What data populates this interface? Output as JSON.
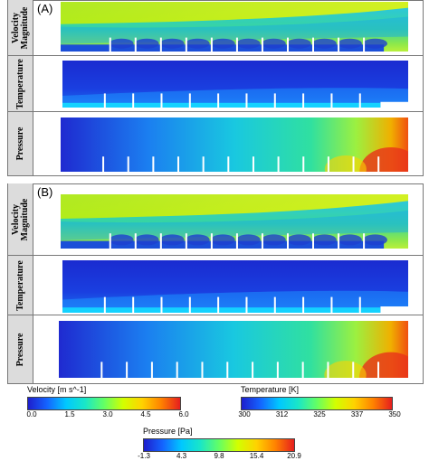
{
  "panels": [
    {
      "tag": "(A)",
      "rows": [
        "Velocity Magnitude",
        "Temperature",
        "Pressure"
      ]
    },
    {
      "tag": "(B)",
      "rows": [
        "Velocity Magnitude",
        "Temperature",
        "Pressure"
      ]
    }
  ],
  "legends": {
    "velocity": {
      "title": "Velocity  [m s^-1]",
      "ticks": [
        "0.0",
        "1.5",
        "3.0",
        "4.5",
        "6.0"
      ]
    },
    "temperature": {
      "title": "Temperature [K]",
      "ticks": [
        "300",
        "312",
        "325",
        "337",
        "350"
      ]
    },
    "pressure": {
      "title": "Pressure [Pa]",
      "ticks": [
        "-1.3",
        "4.3",
        "9.8",
        "15.4",
        "20.9"
      ]
    }
  },
  "colormap": "jet"
}
